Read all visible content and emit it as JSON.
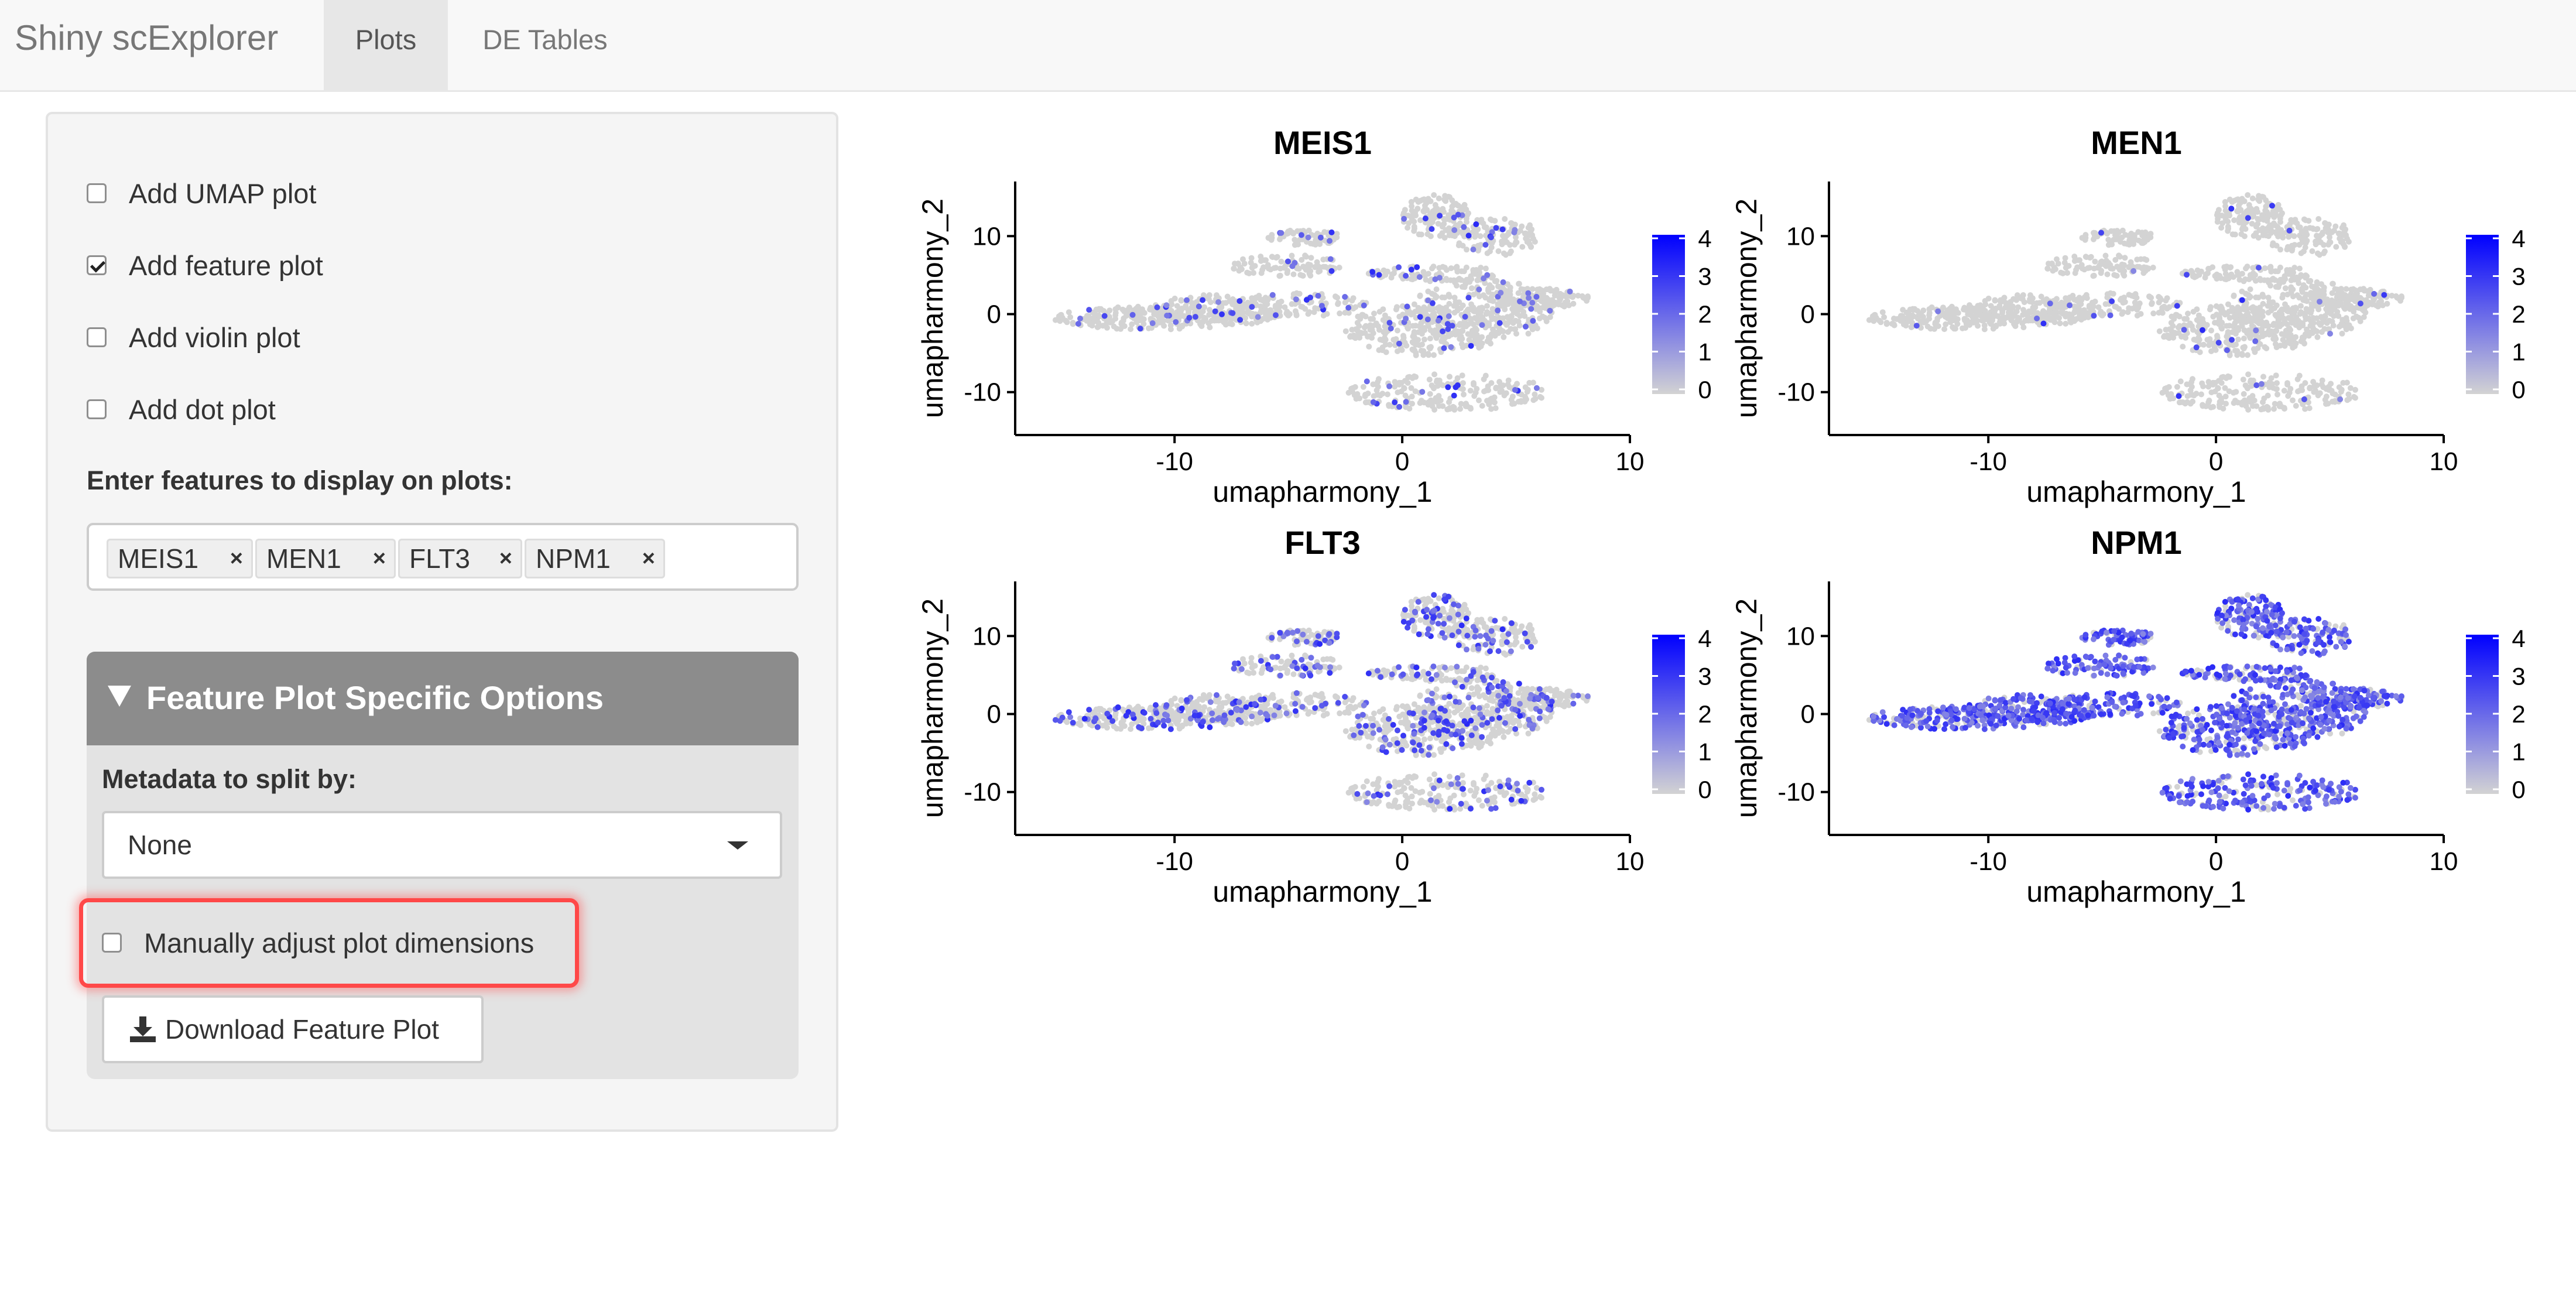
{
  "app": {
    "brand": "Shiny scExplorer",
    "tabs": [
      {
        "label": "Plots",
        "active": true
      },
      {
        "label": "DE Tables",
        "active": false
      }
    ]
  },
  "sidebar": {
    "checkboxes": [
      {
        "label": "Add UMAP plot",
        "checked": false
      },
      {
        "label": "Add feature plot",
        "checked": true
      },
      {
        "label": "Add violin plot",
        "checked": false
      },
      {
        "label": "Add dot plot",
        "checked": false
      }
    ],
    "features_label": "Enter features to display on plots:",
    "features": [
      "MEIS1",
      "MEN1",
      "FLT3",
      "NPM1"
    ],
    "chip_remove_glyph": "×",
    "feature_panel": {
      "title": "Feature Plot Specific Options",
      "split_label": "Metadata to split by:",
      "split_value": "None",
      "manual_dims_label": "Manually adjust plot dimensions",
      "manual_dims_checked": false,
      "download_label": "Download Feature Plot"
    }
  },
  "plots": [
    {
      "title": "MEIS1",
      "xlabel": "umapharmony_1",
      "ylabel": "umapharmony_2",
      "expression": "sparse"
    },
    {
      "title": "MEN1",
      "xlabel": "umapharmony_1",
      "ylabel": "umapharmony_2",
      "expression": "very-sparse"
    },
    {
      "title": "FLT3",
      "xlabel": "umapharmony_1",
      "ylabel": "umapharmony_2",
      "expression": "moderate"
    },
    {
      "title": "NPM1",
      "xlabel": "umapharmony_1",
      "ylabel": "umapharmony_2",
      "expression": "high"
    }
  ],
  "axes": {
    "x_ticks": [
      "-10",
      "0",
      "10"
    ],
    "y_ticks": [
      "10",
      "0",
      "-10"
    ],
    "legend_ticks": [
      "4",
      "3",
      "2",
      "1",
      "0"
    ]
  },
  "colors": {
    "low": "#d3d3d3",
    "high": "#0000ff",
    "highlight": "#ff4848",
    "panel_header": "#8c8c8c"
  }
}
